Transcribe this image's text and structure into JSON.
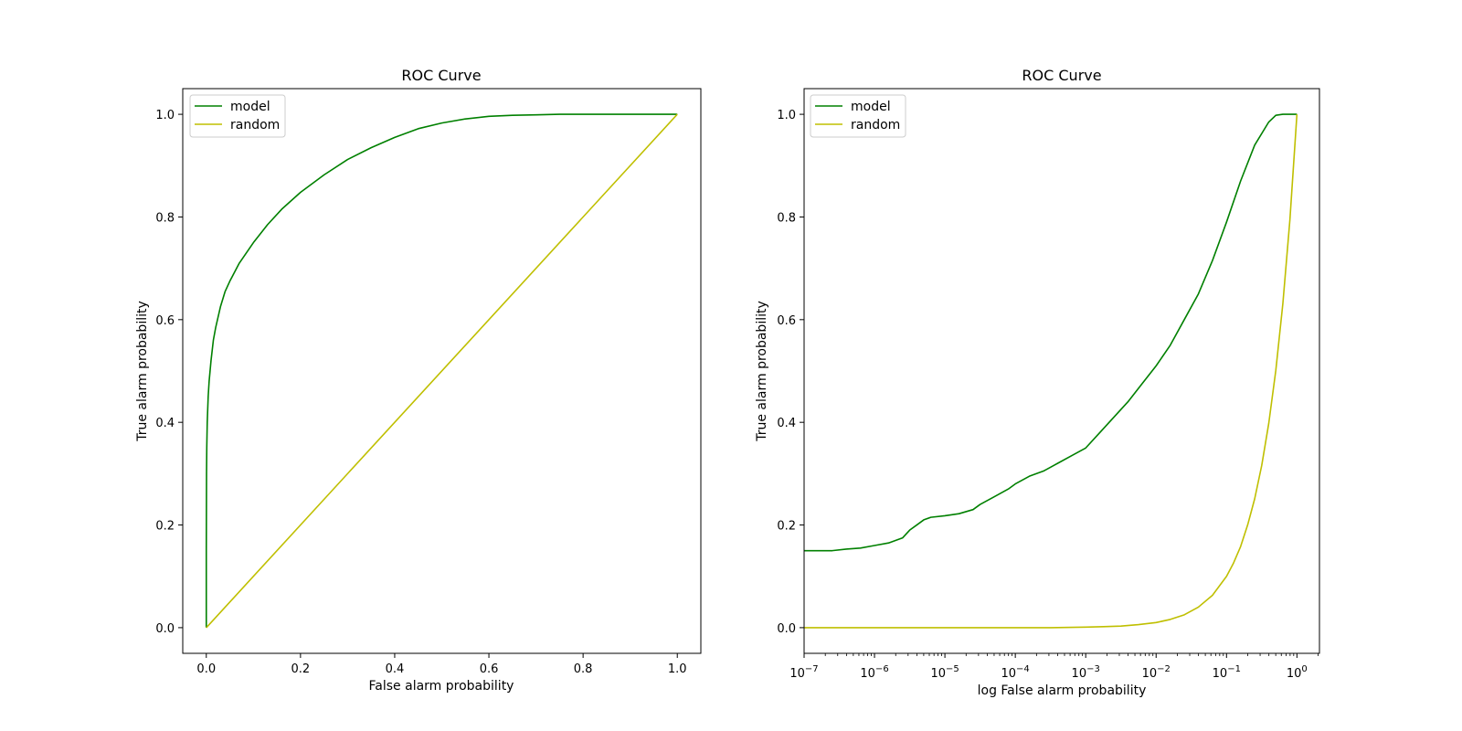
{
  "colors": {
    "model": "#008000",
    "random": "#bfbf00",
    "axes": "#000000",
    "background": "#ffffff"
  },
  "chart_data": [
    {
      "type": "line",
      "title": "ROC Curve",
      "xlabel": "False alarm probability",
      "ylabel": "True alarm probability",
      "xscale": "linear",
      "xlim": [
        -0.05,
        1.05
      ],
      "ylim": [
        -0.05,
        1.05
      ],
      "xticks": [
        0.0,
        0.2,
        0.4,
        0.6,
        0.8,
        1.0
      ],
      "xtick_labels": [
        "0.0",
        "0.2",
        "0.4",
        "0.6",
        "0.8",
        "1.0"
      ],
      "yticks": [
        0.0,
        0.2,
        0.4,
        0.6,
        0.8,
        1.0
      ],
      "ytick_labels": [
        "0.0",
        "0.2",
        "0.4",
        "0.6",
        "0.8",
        "1.0"
      ],
      "legend": {
        "position": "upper left",
        "entries": [
          "model",
          "random"
        ]
      },
      "series": [
        {
          "name": "model",
          "color": "#008000",
          "x": [
            0.0,
            0.0,
            0.0005,
            0.001,
            0.002,
            0.004,
            0.006,
            0.01,
            0.015,
            0.02,
            0.03,
            0.04,
            0.05,
            0.07,
            0.1,
            0.13,
            0.16,
            0.2,
            0.25,
            0.3,
            0.35,
            0.4,
            0.45,
            0.5,
            0.55,
            0.6,
            0.65,
            0.7,
            0.75,
            0.8,
            0.9,
            1.0
          ],
          "y": [
            0.0,
            0.15,
            0.3,
            0.35,
            0.4,
            0.45,
            0.48,
            0.52,
            0.56,
            0.585,
            0.625,
            0.655,
            0.675,
            0.71,
            0.75,
            0.785,
            0.815,
            0.848,
            0.882,
            0.912,
            0.935,
            0.955,
            0.972,
            0.983,
            0.991,
            0.996,
            0.998,
            0.999,
            1.0,
            1.0,
            1.0,
            1.0
          ]
        },
        {
          "name": "random",
          "color": "#bfbf00",
          "x": [
            0.0,
            1.0
          ],
          "y": [
            0.0,
            1.0
          ]
        }
      ]
    },
    {
      "type": "line",
      "title": "ROC Curve",
      "xlabel": "log False alarm probability",
      "ylabel": "True alarm probability",
      "xscale": "log",
      "xlim_log10": [
        -7,
        0.32
      ],
      "ylim": [
        -0.05,
        1.05
      ],
      "xticks_log10": [
        -7,
        -6,
        -5,
        -4,
        -3,
        -2,
        -1,
        0
      ],
      "xtick_labels": [
        {
          "base": "10",
          "exp": "−7"
        },
        {
          "base": "10",
          "exp": "−6"
        },
        {
          "base": "10",
          "exp": "−5"
        },
        {
          "base": "10",
          "exp": "−4"
        },
        {
          "base": "10",
          "exp": "−3"
        },
        {
          "base": "10",
          "exp": "−2"
        },
        {
          "base": "10",
          "exp": "−1"
        },
        {
          "base": "10",
          "exp": "0"
        }
      ],
      "yticks": [
        0.0,
        0.2,
        0.4,
        0.6,
        0.8,
        1.0
      ],
      "ytick_labels": [
        "0.0",
        "0.2",
        "0.4",
        "0.6",
        "0.8",
        "1.0"
      ],
      "legend": {
        "position": "upper left",
        "entries": [
          "model",
          "random"
        ]
      },
      "series": [
        {
          "name": "model",
          "color": "#008000",
          "x_log10": [
            -7,
            -6.6,
            -6.4,
            -6.2,
            -6.0,
            -5.8,
            -5.6,
            -5.5,
            -5.4,
            -5.3,
            -5.2,
            -5.0,
            -4.8,
            -4.6,
            -4.5,
            -4.3,
            -4.1,
            -4.0,
            -3.8,
            -3.6,
            -3.4,
            -3.2,
            -3.0,
            -2.8,
            -2.6,
            -2.4,
            -2.2,
            -2.0,
            -1.8,
            -1.6,
            -1.4,
            -1.2,
            -1.0,
            -0.8,
            -0.6,
            -0.4,
            -0.3,
            -0.2,
            -0.1,
            0.0
          ],
          "y": [
            0.15,
            0.15,
            0.153,
            0.155,
            0.16,
            0.165,
            0.175,
            0.19,
            0.2,
            0.21,
            0.215,
            0.218,
            0.222,
            0.23,
            0.24,
            0.255,
            0.27,
            0.28,
            0.295,
            0.305,
            0.32,
            0.335,
            0.35,
            0.38,
            0.41,
            0.44,
            0.475,
            0.51,
            0.55,
            0.6,
            0.65,
            0.715,
            0.79,
            0.87,
            0.94,
            0.985,
            0.998,
            1.0,
            1.0,
            1.0
          ]
        },
        {
          "name": "random",
          "color": "#bfbf00",
          "x_log10": [
            -7,
            -6,
            -5,
            -4,
            -3.5,
            -3.0,
            -2.75,
            -2.5,
            -2.25,
            -2.0,
            -1.8,
            -1.6,
            -1.4,
            -1.2,
            -1.0,
            -0.9,
            -0.8,
            -0.7,
            -0.6,
            -0.5,
            -0.4,
            -0.3,
            -0.2,
            -0.1,
            0.0
          ],
          "y": [
            0.0,
            0.0,
            0.0,
            0.0,
            0.0,
            0.001,
            0.002,
            0.003,
            0.006,
            0.01,
            0.016,
            0.025,
            0.04,
            0.063,
            0.1,
            0.126,
            0.158,
            0.2,
            0.251,
            0.316,
            0.398,
            0.501,
            0.631,
            0.794,
            1.0
          ]
        }
      ]
    }
  ]
}
